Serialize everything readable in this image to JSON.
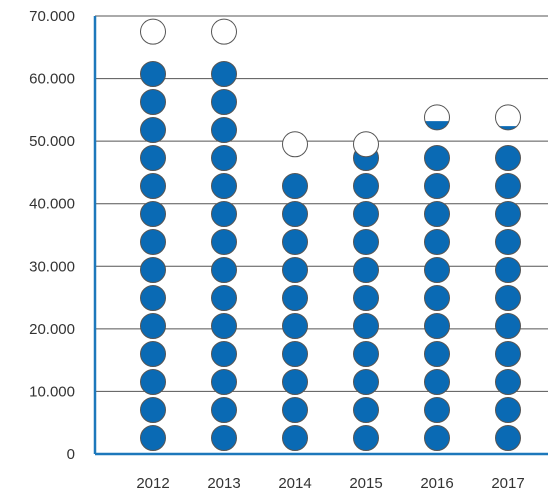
{
  "chart_data": {
    "type": "bar",
    "categories": [
      "2012",
      "2013",
      "2014",
      "2015",
      "2016",
      "2017"
    ],
    "values": [
      65500,
      65500,
      47500,
      47500,
      51800,
      51800
    ],
    "ylim": [
      0,
      70000
    ],
    "yticks": [
      {
        "value": 0,
        "label": "0"
      },
      {
        "value": 10000,
        "label": "10.000"
      },
      {
        "value": 20000,
        "label": "20.000"
      },
      {
        "value": 30000,
        "label": "30.000"
      },
      {
        "value": 40000,
        "label": "40.000"
      },
      {
        "value": 50000,
        "label": "50.000"
      },
      {
        "value": 60000,
        "label": "60.000"
      },
      {
        "value": 70000,
        "label": "70.000"
      }
    ],
    "title": "",
    "xlabel": "",
    "ylabel": "",
    "grid": true,
    "fill_color": "#0a6ab4",
    "outline_color": "#555555",
    "axis_color": "#1d78bb",
    "grid_color": "#555555",
    "series": [
      {
        "name": "",
        "tokens": [
          {
            "category": "2012",
            "full": 14,
            "partial_fill": 0
          },
          {
            "category": "2013",
            "full": 14,
            "partial_fill": 0
          },
          {
            "category": "2014",
            "full": 10,
            "partial_fill": 0
          },
          {
            "category": "2015",
            "full": 11,
            "partial_fill": 0
          },
          {
            "category": "2016",
            "full": 11,
            "partial_fill": 0.35
          },
          {
            "category": "2017",
            "full": 11,
            "partial_fill": 0.15
          }
        ]
      }
    ]
  }
}
